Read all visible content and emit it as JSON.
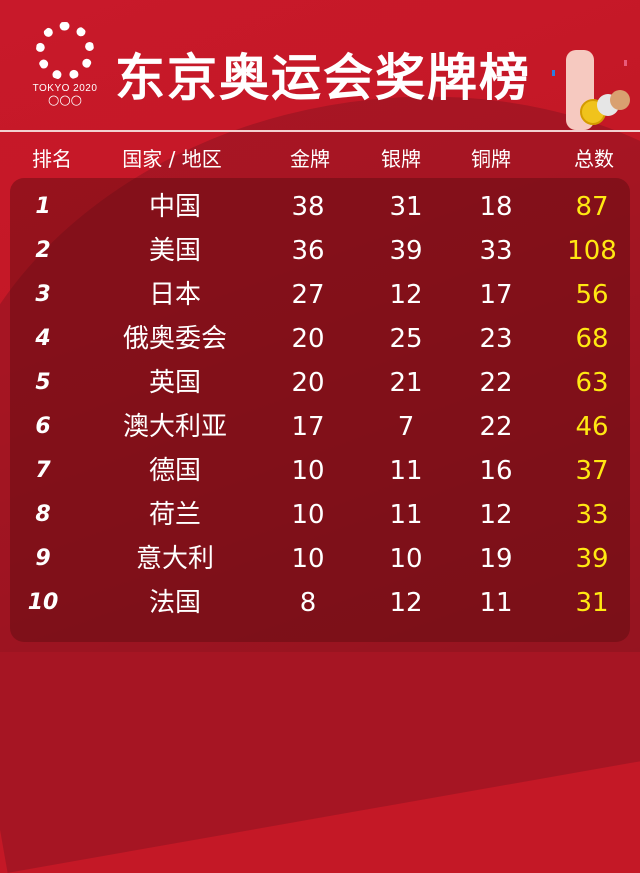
{
  "header": {
    "title": "东京奥运会奖牌榜",
    "logo_text": "TOKYO 2020"
  },
  "columns": [
    "排名",
    "国家 / 地区",
    "金牌",
    "银牌",
    "铜牌",
    "总数"
  ],
  "colors": {
    "background": "#c41826",
    "total": "#ffe812",
    "text": "#ffffff"
  },
  "rows": [
    {
      "rank": "1",
      "country": "中国",
      "gold": "38",
      "silver": "31",
      "bronze": "18",
      "total": "87"
    },
    {
      "rank": "2",
      "country": "美国",
      "gold": "36",
      "silver": "39",
      "bronze": "33",
      "total": "108"
    },
    {
      "rank": "3",
      "country": "日本",
      "gold": "27",
      "silver": "12",
      "bronze": "17",
      "total": "56"
    },
    {
      "rank": "4",
      "country": "俄奥委会",
      "gold": "20",
      "silver": "25",
      "bronze": "23",
      "total": "68"
    },
    {
      "rank": "5",
      "country": "英国",
      "gold": "20",
      "silver": "21",
      "bronze": "22",
      "total": "63"
    },
    {
      "rank": "6",
      "country": "澳大利亚",
      "gold": "17",
      "silver": "7",
      "bronze": "22",
      "total": "46"
    },
    {
      "rank": "7",
      "country": "德国",
      "gold": "10",
      "silver": "11",
      "bronze": "16",
      "total": "37"
    },
    {
      "rank": "8",
      "country": "荷兰",
      "gold": "10",
      "silver": "11",
      "bronze": "12",
      "total": "33"
    },
    {
      "rank": "9",
      "country": "意大利",
      "gold": "10",
      "silver": "10",
      "bronze": "19",
      "total": "39"
    },
    {
      "rank": "10",
      "country": "法国",
      "gold": "8",
      "silver": "12",
      "bronze": "11",
      "total": "31"
    }
  ]
}
